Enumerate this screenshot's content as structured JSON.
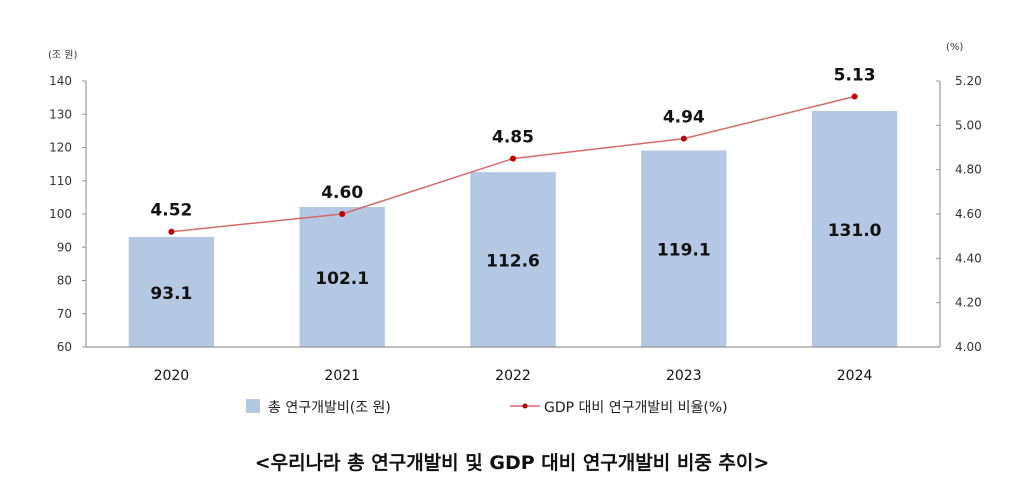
{
  "chart_data": {
    "type": "bar+line",
    "title": "<우리나라 총 연구개발비 및 GDP 대비 연구개발비 비중 추이>",
    "categories": [
      "2020",
      "2021",
      "2022",
      "2023",
      "2024"
    ],
    "series": [
      {
        "name": "총 연구개발비(조 원)",
        "type": "bar",
        "axis": "left",
        "values": [
          93.1,
          102.1,
          112.6,
          119.1,
          131.0
        ],
        "labels": [
          "93.1",
          "102.1",
          "112.6",
          "119.1",
          "131.0"
        ],
        "color": "#b4c7e3"
      },
      {
        "name": "GDP 대비 연구개발비 비율(%)",
        "type": "line",
        "axis": "right",
        "values": [
          4.52,
          4.6,
          4.85,
          4.94,
          5.13
        ],
        "labels": [
          "4.52",
          "4.60",
          "4.85",
          "4.94",
          "5.13"
        ],
        "color": "#d46a6a",
        "marker_color": "#c00000"
      }
    ],
    "left_axis": {
      "unit": "(조 원)",
      "ylim": [
        60,
        140
      ],
      "ticks": [
        "60",
        "70",
        "80",
        "90",
        "100",
        "110",
        "120",
        "130",
        "140"
      ]
    },
    "right_axis": {
      "unit": "(%)",
      "ylim": [
        4.0,
        5.2
      ],
      "ticks": [
        "4.00",
        "4.20",
        "4.40",
        "4.60",
        "4.80",
        "5.00",
        "5.20"
      ]
    },
    "grid": false,
    "legend_position": "bottom"
  }
}
